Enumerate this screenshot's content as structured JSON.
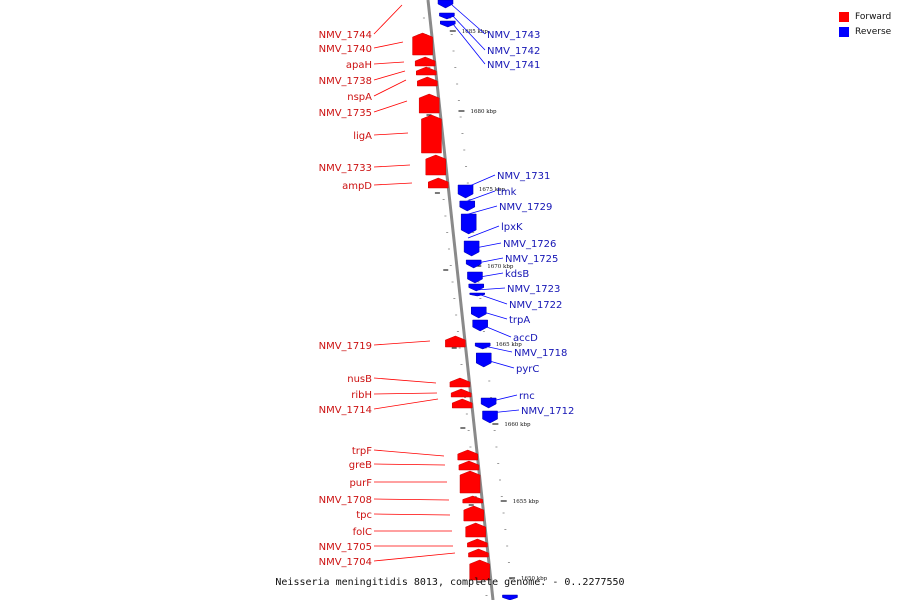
{
  "colors": {
    "forward": "#ff0000",
    "reverse": "#0000ff",
    "forward_label": "#cc1111",
    "reverse_label": "#1515b5",
    "axis": "#8a8a8a"
  },
  "legend": {
    "forward_label": "Forward",
    "reverse_label": "Reverse"
  },
  "caption": "Neisseria meningitidis 8013, complete genome. - 0..2277550",
  "scale_labels": [
    "1685 kbp",
    "1680 kbp",
    "1675 kbp",
    "1670 kbp",
    "1665 kbp",
    "1660 kbp",
    "1655 kbp",
    "1650 kbp"
  ],
  "genes_forward": [
    "NMV_1744",
    "NMV_1740",
    "apaH",
    "NMV_1738",
    "nspA",
    "NMV_1735",
    "ligA",
    "NMV_1733",
    "ampD",
    "NMV_1719",
    "nusB",
    "ribH",
    "NMV_1714",
    "trpF",
    "greB",
    "purF",
    "NMV_1708",
    "tpc",
    "folC",
    "NMV_1705",
    "NMV_1704"
  ],
  "genes_reverse": [
    "NMV_1743",
    "NMV_1742",
    "NMV_1741",
    "NMV_1731",
    "tmk",
    "NMV_1729",
    "lpxK",
    "NMV_1726",
    "NMV_1725",
    "kdsB",
    "NMV_1723",
    "NMV_1722",
    "trpA",
    "accD",
    "NMV_1718",
    "pyrC",
    "rnc",
    "NMV_1712"
  ]
}
